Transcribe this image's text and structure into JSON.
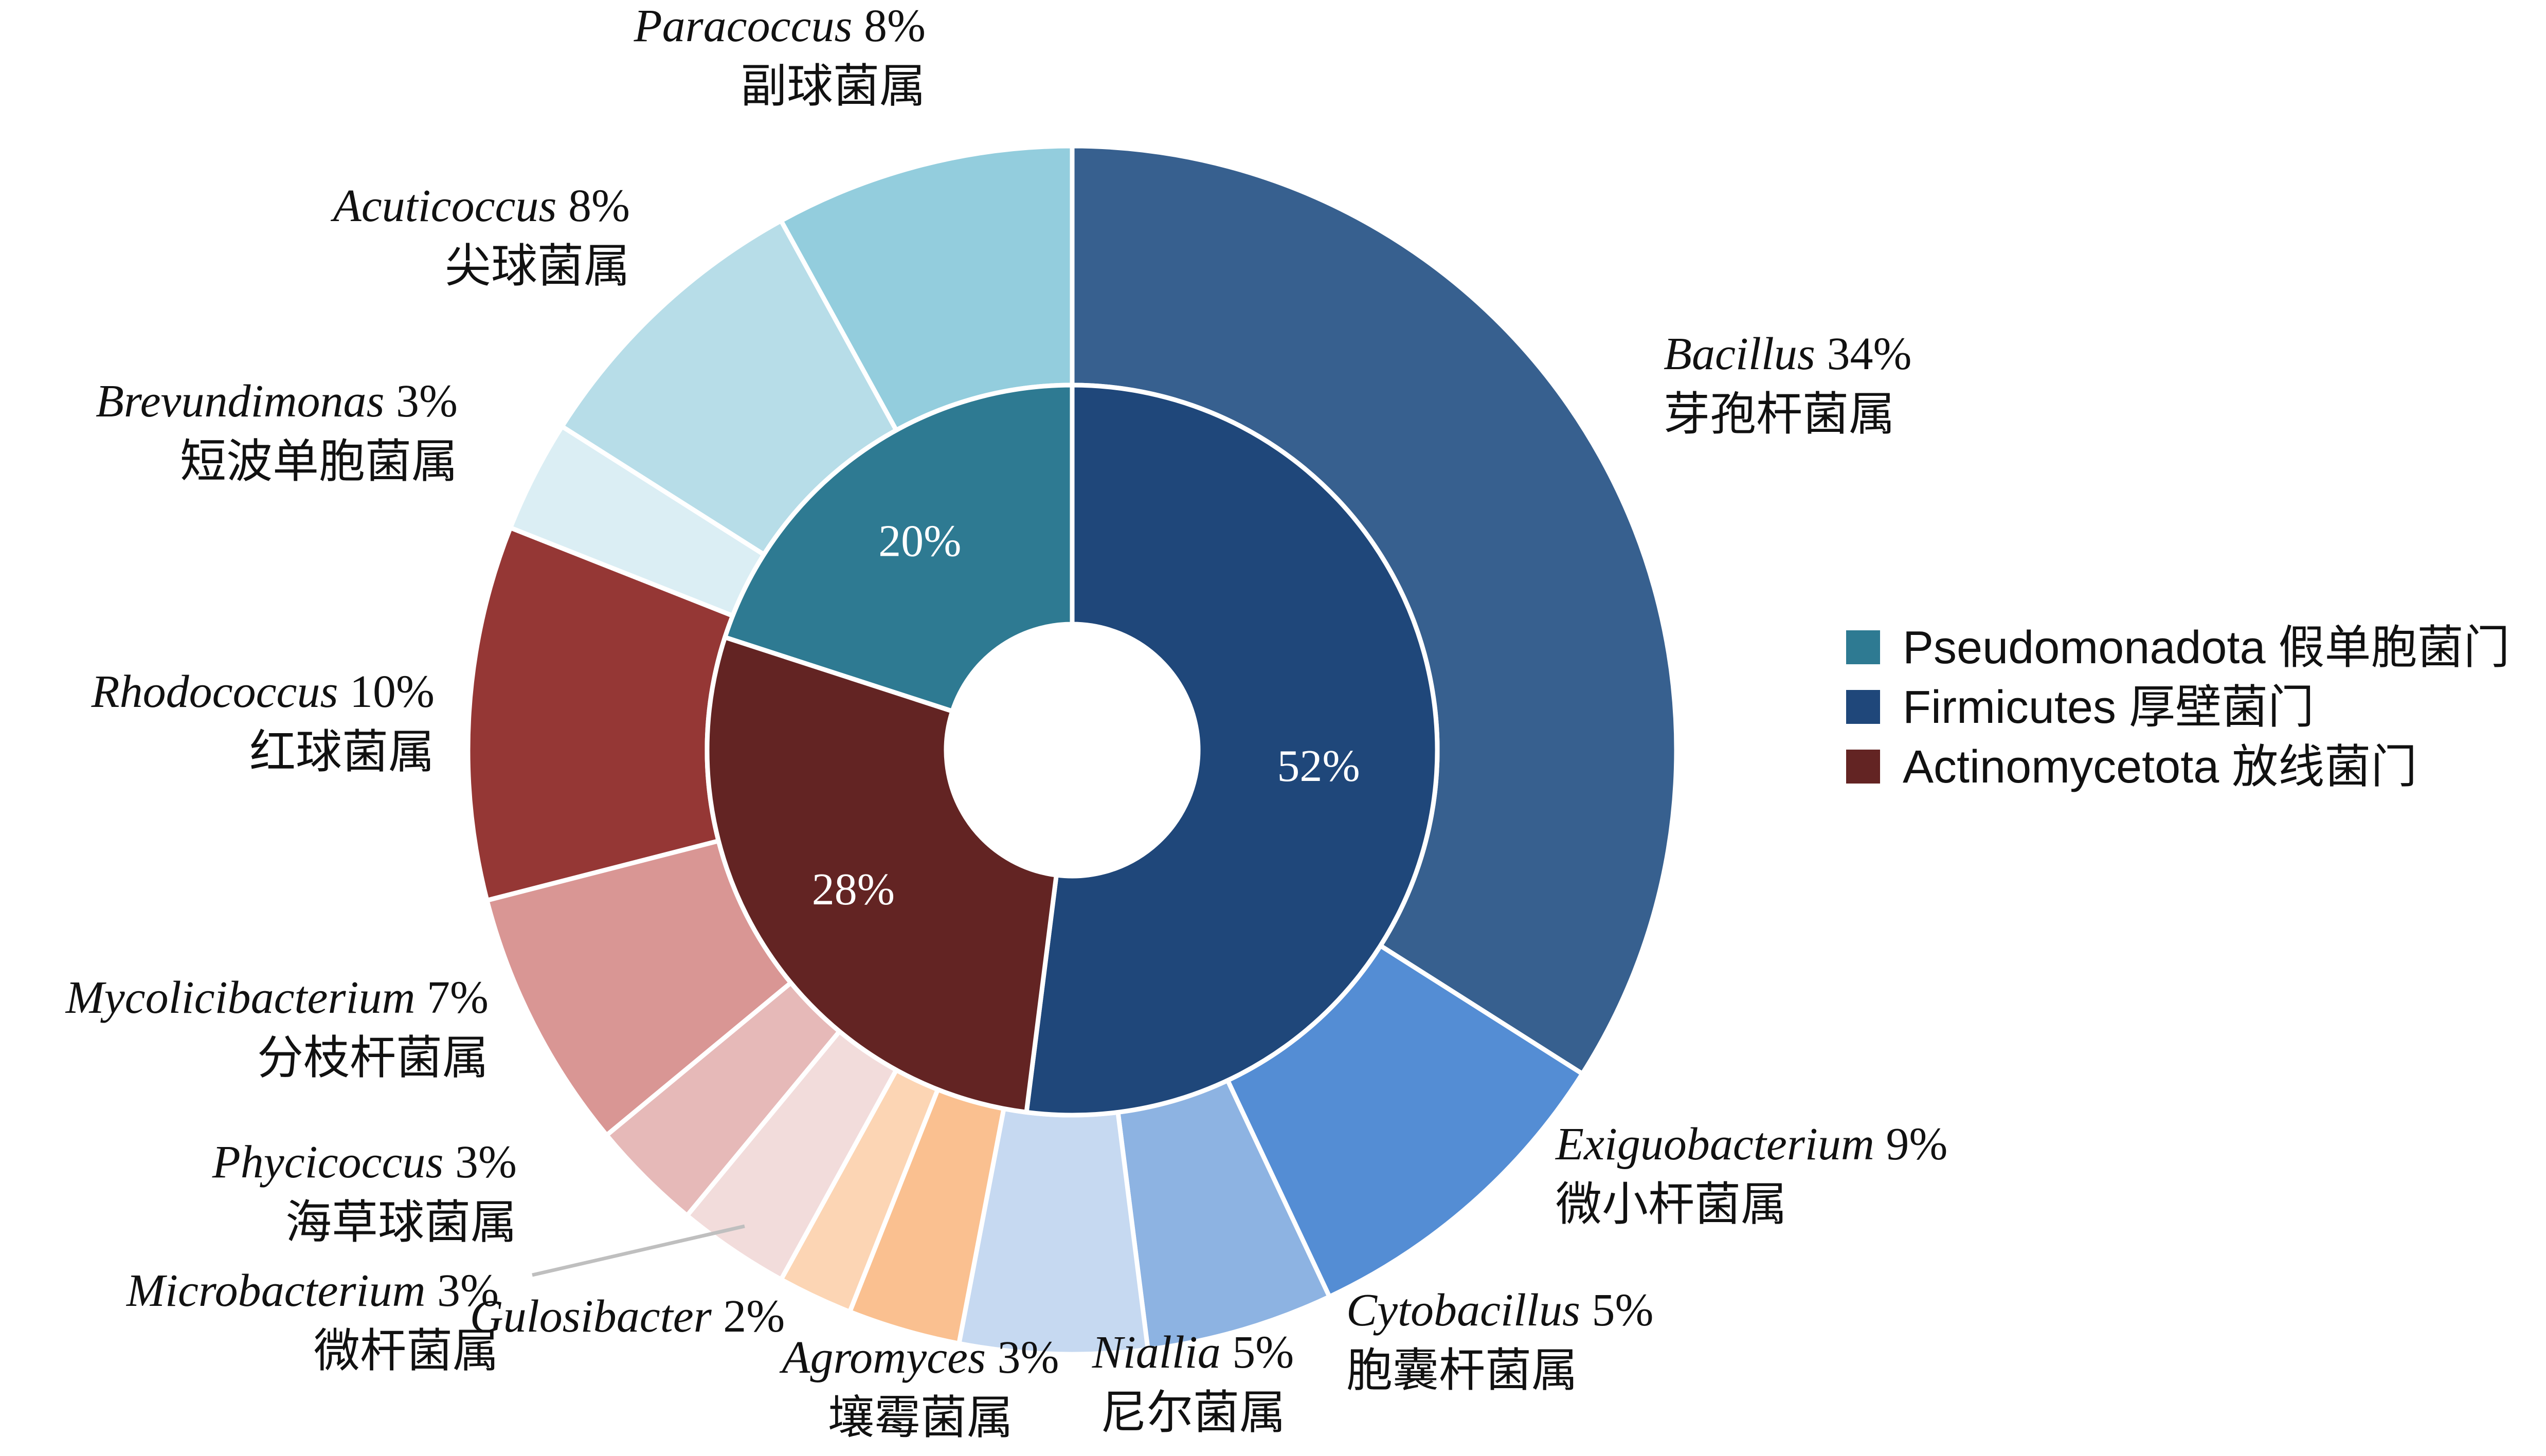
{
  "chart_data": {
    "type": "pie",
    "title": "",
    "inner_ring": [
      {
        "phylum": "Pseudomonadota",
        "phylum_cn": "假单胞菌门",
        "value": 20,
        "label": "20%",
        "color": "#2E7A92"
      },
      {
        "phylum": "Firmicutes",
        "phylum_cn": "厚壁菌门",
        "value": 52,
        "label": "52%",
        "color": "#1F477A"
      },
      {
        "phylum": "Actinomycetota",
        "phylum_cn": "放线菌门",
        "value": 28,
        "label": "28%",
        "color": "#632423"
      }
    ],
    "outer_ring": [
      {
        "genus": "Bacillus",
        "genus_cn": "芽孢杆菌属",
        "value": 34,
        "pct_label": "34%",
        "phylum": "Firmicutes",
        "color": "#37608F"
      },
      {
        "genus": "Exiguobacterium",
        "genus_cn": "微小杆菌属",
        "value": 9,
        "pct_label": "9%",
        "phylum": "Firmicutes",
        "color": "#548DD4"
      },
      {
        "genus": "Cytobacillus",
        "genus_cn": "胞囊杆菌属",
        "value": 5,
        "pct_label": "5%",
        "phylum": "Firmicutes",
        "color": "#8DB3E2"
      },
      {
        "genus": "Niallia",
        "genus_cn": "尼尔菌属",
        "value": 5,
        "pct_label": "5%",
        "phylum": "Firmicutes",
        "color": "#C6D9F1"
      },
      {
        "genus": "Agromyces",
        "genus_cn": "壤霉菌属",
        "value": 3,
        "pct_label": "3%",
        "phylum": "Actinomycetota",
        "color": "#FAC090"
      },
      {
        "genus": "Gulosibacter",
        "genus_cn": "",
        "value": 2,
        "pct_label": "2%",
        "phylum": "Actinomycetota",
        "color": "#FCD5B4"
      },
      {
        "genus": "Microbacterium",
        "genus_cn": "微杆菌属",
        "value": 3,
        "pct_label": "3%",
        "phylum": "Actinomycetota",
        "color": "#F2DCDB"
      },
      {
        "genus": "Phycicoccus",
        "genus_cn": "海草球菌属",
        "value": 3,
        "pct_label": "3%",
        "phylum": "Actinomycetota",
        "color": "#E6B9B8"
      },
      {
        "genus": "Mycolicibacterium",
        "genus_cn": "分枝杆菌属",
        "value": 7,
        "pct_label": "7%",
        "phylum": "Actinomycetota",
        "color": "#D99694"
      },
      {
        "genus": "Rhodococcus",
        "genus_cn": "红球菌属",
        "value": 10,
        "pct_label": "10%",
        "phylum": "Actinomycetota",
        "color": "#953735"
      },
      {
        "genus": "Brevundimonas",
        "genus_cn": "短波单胞菌属",
        "value": 3,
        "pct_label": "3%",
        "phylum": "Pseudomonadota",
        "color": "#DBEEF4"
      },
      {
        "genus": "Acuticoccus",
        "genus_cn": "尖球菌属",
        "value": 8,
        "pct_label": "8%",
        "phylum": "Pseudomonadota",
        "color": "#B7DDE8"
      },
      {
        "genus": "Paracoccus",
        "genus_cn": "副球菌属",
        "value": 8,
        "pct_label": "8%",
        "phylum": "Pseudomonadota",
        "color": "#93CDDD"
      }
    ],
    "legend": [
      {
        "label": "Pseudomonadota 假单胞菌门",
        "color": "#2E7A92"
      },
      {
        "label": "Firmicutes 厚壁菌门",
        "color": "#1F477A"
      },
      {
        "label": "Actinomycetota 放线菌门",
        "color": "#632423"
      }
    ],
    "legend_position": "right",
    "separator_color": "#ffffff",
    "leader_line_color": "#BFBFBF"
  }
}
